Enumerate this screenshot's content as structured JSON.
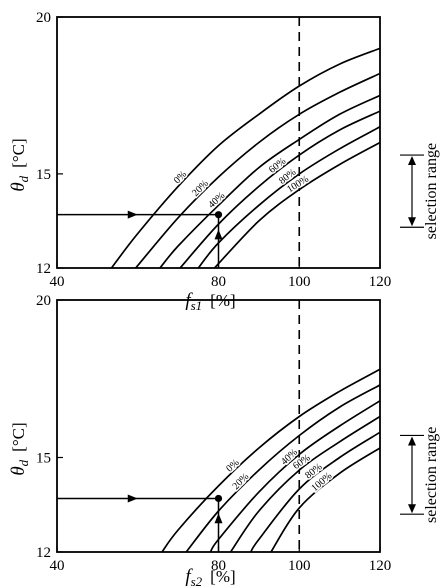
{
  "chart_data": [
    {
      "type": "line",
      "xlabel": "f",
      "xlabel_sub": "s1",
      "xunit": "[%]",
      "ylabel": "θ",
      "ylabel_sub": "d",
      "yunit": "[°C]",
      "xlim": [
        40,
        120
      ],
      "ylim": [
        12,
        20
      ],
      "xticks": [
        40,
        80,
        100,
        120
      ],
      "yticks": [
        12,
        15,
        20
      ],
      "reference_x": 100,
      "operating_point": {
        "x": 80,
        "y": 13.7
      },
      "selection_range": {
        "label": "selection range",
        "y_min": 13.3,
        "y_max": 15.6
      },
      "series": [
        {
          "name": "0%",
          "values": [
            [
              53.5,
              12.0
            ],
            [
              60,
              13.1
            ],
            [
              70,
              14.6
            ],
            [
              80,
              15.9
            ],
            [
              90,
              16.9
            ],
            [
              100,
              17.8
            ],
            [
              110,
              18.5
            ],
            [
              120,
              19.0
            ]
          ]
        },
        {
          "name": "20%",
          "values": [
            [
              59.5,
              12.0
            ],
            [
              70,
              13.6
            ],
            [
              80,
              14.9
            ],
            [
              90,
              16.0
            ],
            [
              100,
              16.9
            ],
            [
              110,
              17.6
            ],
            [
              120,
              18.2
            ]
          ]
        },
        {
          "name": "40%",
          "values": [
            [
              65.5,
              12.0
            ],
            [
              70,
              12.7
            ],
            [
              80,
              14.0
            ],
            [
              90,
              15.2
            ],
            [
              100,
              16.1
            ],
            [
              110,
              16.9
            ],
            [
              120,
              17.5
            ]
          ]
        },
        {
          "name": "60%",
          "values": [
            [
              70.5,
              12.0
            ],
            [
              80,
              13.4
            ],
            [
              90,
              14.6
            ],
            [
              100,
              15.6
            ],
            [
              110,
              16.4
            ],
            [
              120,
              17.0
            ]
          ]
        },
        {
          "name": "80%",
          "values": [
            [
              75.0,
              12.0
            ],
            [
              80,
              12.8
            ],
            [
              90,
              14.0
            ],
            [
              100,
              15.0
            ],
            [
              110,
              15.8
            ],
            [
              120,
              16.5
            ]
          ]
        },
        {
          "name": "100%",
          "values": [
            [
              79.0,
              12.0
            ],
            [
              90,
              13.5
            ],
            [
              100,
              14.5
            ],
            [
              110,
              15.3
            ],
            [
              120,
              16.0
            ]
          ]
        }
      ]
    },
    {
      "type": "line",
      "xlabel": "f",
      "xlabel_sub": "s2",
      "xunit": "[%]",
      "ylabel": "θ",
      "ylabel_sub": "d",
      "yunit": "[°C]",
      "xlim": [
        40,
        120
      ],
      "ylim": [
        12,
        20
      ],
      "xticks": [
        40,
        80,
        100,
        120
      ],
      "yticks": [
        12,
        15,
        20
      ],
      "reference_x": 100,
      "operating_point": {
        "x": 80,
        "y": 13.7
      },
      "selection_range": {
        "label": "selection range",
        "y_min": 13.2,
        "y_max": 15.7
      },
      "series": [
        {
          "name": "0%",
          "values": [
            [
              66.0,
              12.0
            ],
            [
              70,
              12.7
            ],
            [
              80,
              14.1
            ],
            [
              90,
              15.3
            ],
            [
              100,
              16.3
            ],
            [
              110,
              17.1
            ],
            [
              120,
              17.8
            ]
          ]
        },
        {
          "name": "20%",
          "values": [
            [
              72.0,
              12.0
            ],
            [
              80,
              13.3
            ],
            [
              90,
              14.6
            ],
            [
              100,
              15.7
            ],
            [
              110,
              16.6
            ],
            [
              120,
              17.3
            ]
          ]
        },
        {
          "name": "40%",
          "values": [
            [
              78.0,
              12.0
            ],
            [
              80,
              12.4
            ],
            [
              90,
              13.9
            ],
            [
              100,
              15.1
            ],
            [
              110,
              16.0
            ],
            [
              120,
              16.8
            ]
          ]
        },
        {
          "name": "60%",
          "values": [
            [
              83.0,
              12.0
            ],
            [
              90,
              13.3
            ],
            [
              100,
              14.6
            ],
            [
              110,
              15.5
            ],
            [
              120,
              16.3
            ]
          ]
        },
        {
          "name": "80%",
          "values": [
            [
              88.0,
              12.0
            ],
            [
              90,
              12.4
            ],
            [
              100,
              14.0
            ],
            [
              110,
              15.0
            ],
            [
              120,
              15.8
            ]
          ]
        },
        {
          "name": "100%",
          "values": [
            [
              93.0,
              12.0
            ],
            [
              100,
              13.4
            ],
            [
              110,
              14.5
            ],
            [
              120,
              15.3
            ]
          ]
        }
      ]
    }
  ]
}
